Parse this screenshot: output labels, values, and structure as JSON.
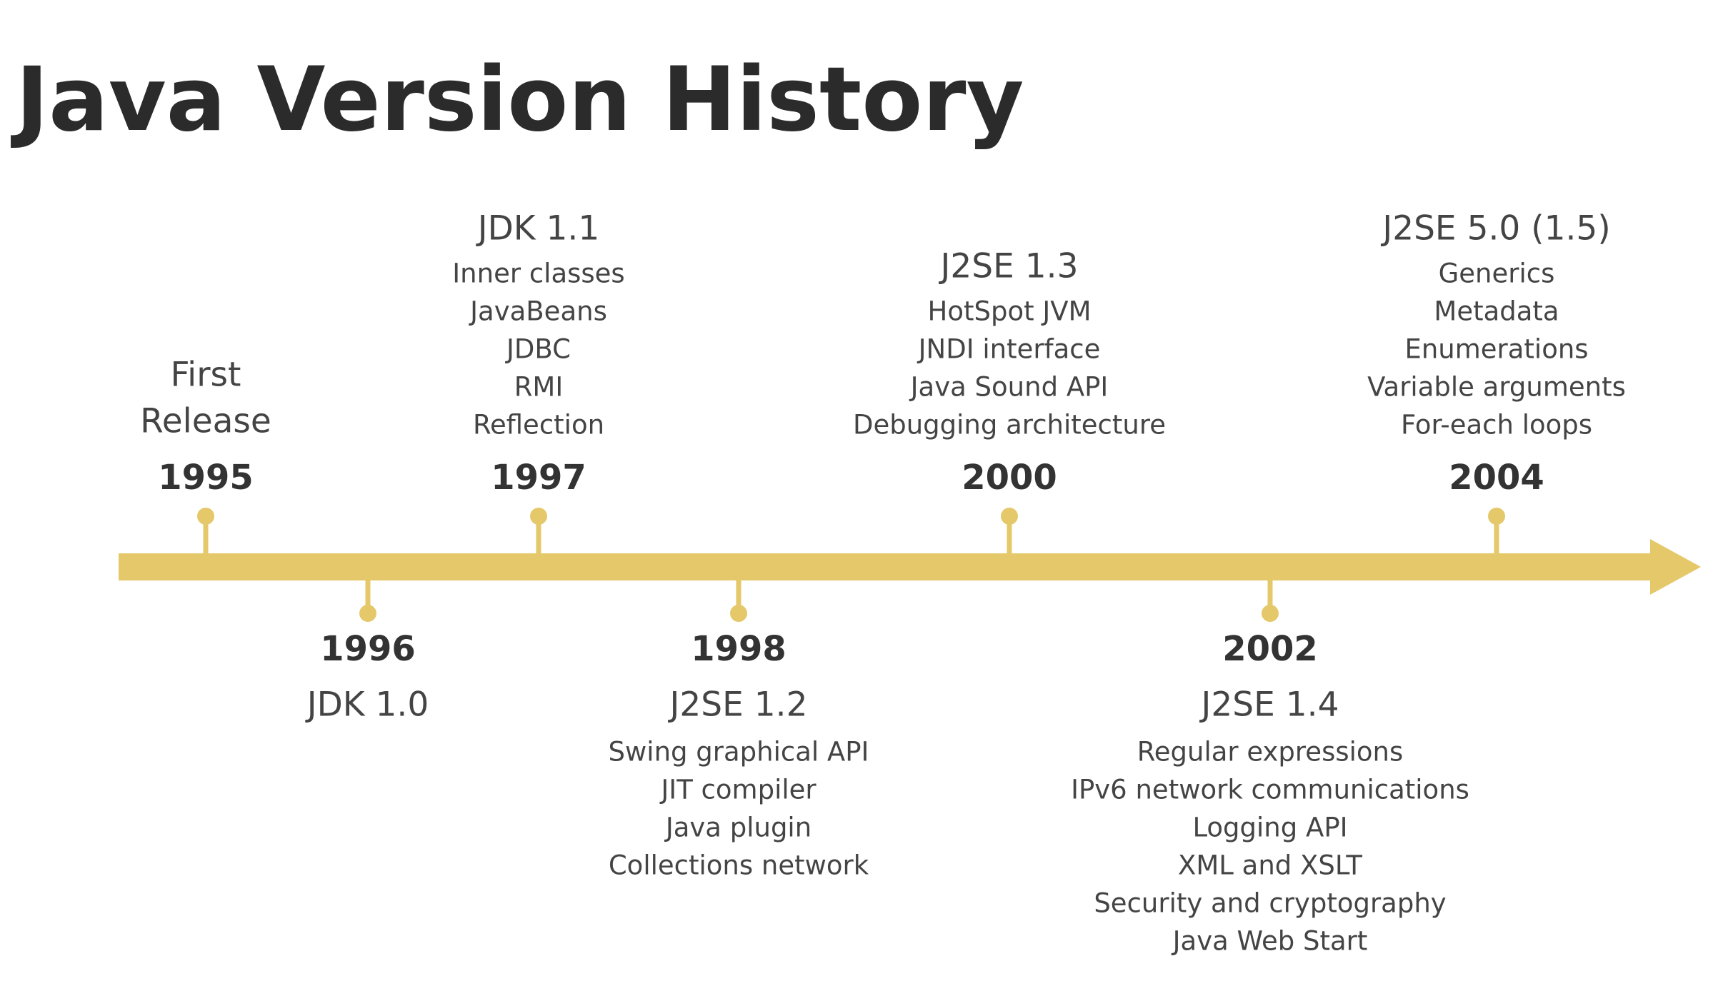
{
  "header": {
    "title": "Java Version History"
  },
  "events": [
    {
      "year": "1995",
      "side": "above",
      "title": [
        "First",
        "Release"
      ],
      "items": []
    },
    {
      "year": "1996",
      "side": "below",
      "title": [
        "JDK 1.0"
      ],
      "items": []
    },
    {
      "year": "1997",
      "side": "above",
      "title": [
        "JDK 1.1"
      ],
      "items": [
        "Inner classes",
        "JavaBeans",
        "JDBC",
        "RMI",
        "Reflection"
      ]
    },
    {
      "year": "1998",
      "side": "below",
      "title": [
        "J2SE 1.2"
      ],
      "items": [
        "Swing graphical API",
        "JIT compiler",
        "Java plugin",
        "Collections network"
      ]
    },
    {
      "year": "2000",
      "side": "above",
      "title": [
        "J2SE 1.3"
      ],
      "items": [
        "HotSpot JVM",
        "JNDI interface",
        "Java Sound API",
        "Debugging architecture"
      ]
    },
    {
      "year": "2002",
      "side": "below",
      "title": [
        "J2SE 1.4"
      ],
      "items": [
        "Regular expressions",
        "IPv6 network communications",
        "Logging API",
        "XML and XSLT",
        "Security and cryptography",
        "Java Web Start"
      ]
    },
    {
      "year": "2004",
      "side": "above",
      "title": [
        "J2SE 5.0 (1.5)"
      ],
      "items": [
        "Generics",
        "Metadata",
        "Enumerations",
        "Variable arguments",
        "For-each loops"
      ]
    }
  ]
}
